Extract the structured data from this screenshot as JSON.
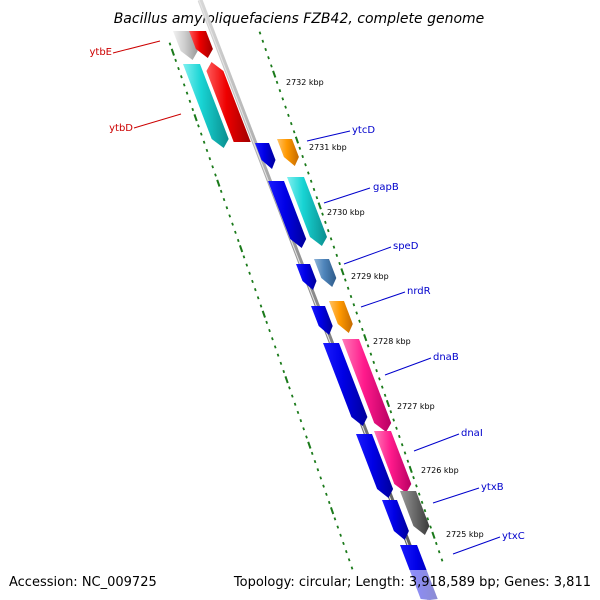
{
  "title": "Bacillus amyloliquefaciens FZB42, complete genome",
  "footer": {
    "accession": "Accession: NC_009725",
    "summary": "Topology: circular; Length: 3,918,589 bp; Genes: 3,811"
  },
  "colors": {
    "backbone": "#909090",
    "tick": "#1a7a1a",
    "label_forward": "#0000cc",
    "label_reverse": "#cc0000"
  },
  "scale_labels": [
    "2732 kbp",
    "2731 kbp",
    "2730 kbp",
    "2729 kbp",
    "2728 kbp",
    "2727 kbp",
    "2726 kbp",
    "2725 kbp"
  ],
  "genes": [
    {
      "name": "ytbE",
      "strand": "reverse"
    },
    {
      "name": "ytbD",
      "strand": "reverse"
    },
    {
      "name": "ytcD",
      "strand": "forward"
    },
    {
      "name": "gapB",
      "strand": "forward"
    },
    {
      "name": "speD",
      "strand": "forward"
    },
    {
      "name": "nrdR",
      "strand": "forward"
    },
    {
      "name": "dnaB",
      "strand": "forward"
    },
    {
      "name": "dnaI",
      "strand": "forward"
    },
    {
      "name": "ytxB",
      "strand": "forward"
    },
    {
      "name": "ytxC",
      "strand": "forward"
    }
  ]
}
